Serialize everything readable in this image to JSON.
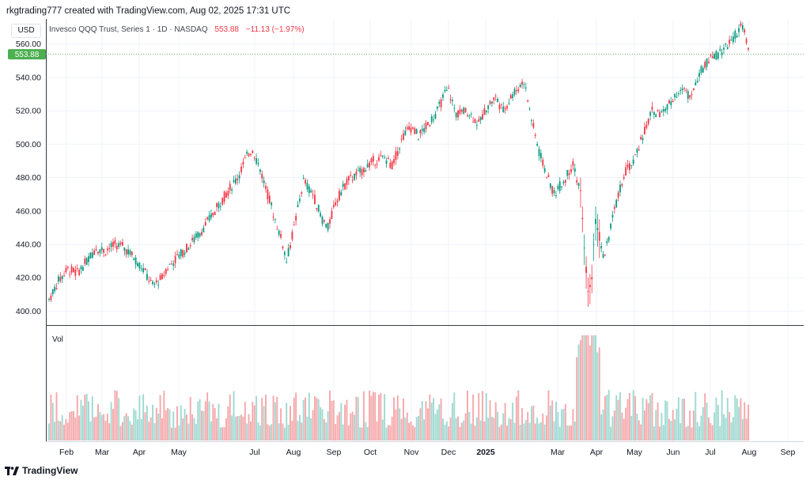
{
  "header": {
    "text": "rkgtrading777 created with TradingView.com, Aug 02, 2025 17:31 UTC"
  },
  "currency": "USD",
  "symbol_bar": {
    "name": "Invesco QQQ Trust, Series 1 · 1D · NASDAQ",
    "price": "553.88",
    "change": "−11.13 (−1.97%)"
  },
  "price_label": "553.88",
  "volume_label": "Vol",
  "footer": {
    "brand": "TradingView",
    "logo_icon": "tradingview-logo-icon"
  },
  "colors": {
    "up": "#26a69a",
    "down": "#ef5350",
    "up_body": "#089981",
    "down_body": "#f23645",
    "vol_up": "#9fd9d1",
    "vol_down": "#f5a8ab",
    "price_label_bg": "#4caf50"
  },
  "chart_data": {
    "type": "candlestick",
    "title": "Invesco QQQ Trust, Series 1 · 1D · NASDAQ",
    "ylim": [
      395,
      575
    ],
    "y_ticks": [
      "400.00",
      "420.00",
      "440.00",
      "460.00",
      "480.00",
      "500.00",
      "520.00",
      "540.00",
      "560.00"
    ],
    "x_ticks": [
      "Feb",
      "Mar",
      "Apr",
      "May",
      "Jul",
      "Aug",
      "Sep",
      "Oct",
      "Nov",
      "Dec",
      "2025",
      "Mar",
      "Apr",
      "May",
      "Jun",
      "Jul",
      "Aug",
      "Sep"
    ],
    "last_price": 553.88,
    "anchors": [
      {
        "d": 0,
        "v": 407
      },
      {
        "d": 5,
        "v": 418
      },
      {
        "d": 10,
        "v": 425
      },
      {
        "d": 15,
        "v": 423
      },
      {
        "d": 20,
        "v": 430
      },
      {
        "d": 25,
        "v": 438
      },
      {
        "d": 30,
        "v": 436
      },
      {
        "d": 35,
        "v": 440
      },
      {
        "d": 40,
        "v": 438
      },
      {
        "d": 45,
        "v": 432
      },
      {
        "d": 50,
        "v": 425
      },
      {
        "d": 55,
        "v": 415
      },
      {
        "d": 60,
        "v": 420
      },
      {
        "d": 62,
        "v": 425
      },
      {
        "d": 68,
        "v": 432
      },
      {
        "d": 75,
        "v": 440
      },
      {
        "d": 82,
        "v": 450
      },
      {
        "d": 88,
        "v": 460
      },
      {
        "d": 95,
        "v": 472
      },
      {
        "d": 100,
        "v": 480
      },
      {
        "d": 106,
        "v": 495
      },
      {
        "d": 108,
        "v": 497
      },
      {
        "d": 112,
        "v": 485
      },
      {
        "d": 116,
        "v": 470
      },
      {
        "d": 120,
        "v": 455
      },
      {
        "d": 124,
        "v": 440
      },
      {
        "d": 126,
        "v": 430
      },
      {
        "d": 130,
        "v": 450
      },
      {
        "d": 135,
        "v": 478
      },
      {
        "d": 140,
        "v": 470
      },
      {
        "d": 145,
        "v": 455
      },
      {
        "d": 148,
        "v": 450
      },
      {
        "d": 152,
        "v": 465
      },
      {
        "d": 158,
        "v": 478
      },
      {
        "d": 165,
        "v": 483
      },
      {
        "d": 172,
        "v": 490
      },
      {
        "d": 178,
        "v": 492
      },
      {
        "d": 182,
        "v": 487
      },
      {
        "d": 188,
        "v": 505
      },
      {
        "d": 192,
        "v": 510
      },
      {
        "d": 196,
        "v": 505
      },
      {
        "d": 200,
        "v": 510
      },
      {
        "d": 206,
        "v": 520
      },
      {
        "d": 210,
        "v": 530
      },
      {
        "d": 212,
        "v": 532
      },
      {
        "d": 216,
        "v": 518
      },
      {
        "d": 222,
        "v": 520
      },
      {
        "d": 228,
        "v": 512
      },
      {
        "d": 232,
        "v": 522
      },
      {
        "d": 237,
        "v": 528
      },
      {
        "d": 241,
        "v": 520
      },
      {
        "d": 246,
        "v": 530
      },
      {
        "d": 250,
        "v": 535
      },
      {
        "d": 252,
        "v": 538
      },
      {
        "d": 256,
        "v": 515
      },
      {
        "d": 260,
        "v": 495
      },
      {
        "d": 264,
        "v": 482
      },
      {
        "d": 268,
        "v": 470
      },
      {
        "d": 273,
        "v": 478
      },
      {
        "d": 278,
        "v": 488
      },
      {
        "d": 282,
        "v": 470
      },
      {
        "d": 284,
        "v": 440
      },
      {
        "d": 286,
        "v": 410
      },
      {
        "d": 288,
        "v": 420
      },
      {
        "d": 290,
        "v": 455
      },
      {
        "d": 292,
        "v": 445
      },
      {
        "d": 294,
        "v": 432
      },
      {
        "d": 297,
        "v": 445
      },
      {
        "d": 300,
        "v": 460
      },
      {
        "d": 305,
        "v": 482
      },
      {
        "d": 310,
        "v": 490
      },
      {
        "d": 315,
        "v": 505
      },
      {
        "d": 320,
        "v": 520
      },
      {
        "d": 324,
        "v": 518
      },
      {
        "d": 328,
        "v": 522
      },
      {
        "d": 332,
        "v": 530
      },
      {
        "d": 336,
        "v": 533
      },
      {
        "d": 340,
        "v": 528
      },
      {
        "d": 344,
        "v": 540
      },
      {
        "d": 348,
        "v": 548
      },
      {
        "d": 352,
        "v": 552
      },
      {
        "d": 356,
        "v": 555
      },
      {
        "d": 360,
        "v": 560
      },
      {
        "d": 364,
        "v": 565
      },
      {
        "d": 367,
        "v": 570
      },
      {
        "d": 369,
        "v": 567
      },
      {
        "d": 371,
        "v": 555
      }
    ],
    "volume_profile": "moderate with spikes near Aug, Mar and a large spike in early Apr"
  }
}
